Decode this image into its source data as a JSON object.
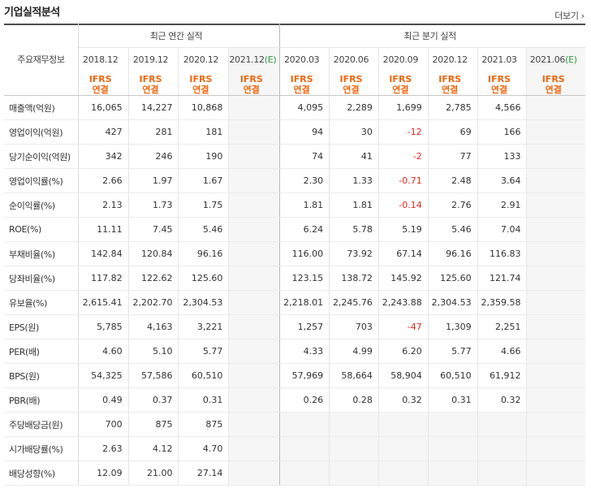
{
  "title": "기업실적분석",
  "more_label": "더보기",
  "header": {
    "label": "주요재무정보",
    "annual_group": "최근 연간 실적",
    "quarter_group": "최근 분기 실적",
    "annual_periods": [
      "2018.12",
      "2019.12",
      "2020.12",
      "2021.12(E)"
    ],
    "quarter_periods": [
      "2020.03",
      "2020.06",
      "2020.09",
      "2020.12",
      "2021.03",
      "2021.06(E)"
    ],
    "ifrs_top": "IFRS",
    "ifrs_bottom": "연결"
  },
  "rows": [
    {
      "label": "매출액(억원)",
      "annual": [
        "16,065",
        "14,227",
        "10,868",
        ""
      ],
      "quarter": [
        "4,095",
        "2,289",
        "1,699",
        "2,785",
        "4,566",
        ""
      ]
    },
    {
      "label": "영업이익(억원)",
      "annual": [
        "427",
        "281",
        "181",
        ""
      ],
      "quarter": [
        "94",
        "30",
        "-12",
        "69",
        "166",
        ""
      ]
    },
    {
      "label": "당기순이익(억원)",
      "annual": [
        "342",
        "246",
        "190",
        ""
      ],
      "quarter": [
        "74",
        "41",
        "-2",
        "77",
        "133",
        ""
      ]
    },
    {
      "label": "영업이익률(%)",
      "annual": [
        "2.66",
        "1.97",
        "1.67",
        ""
      ],
      "quarter": [
        "2.30",
        "1.33",
        "-0.71",
        "2.48",
        "3.64",
        ""
      ]
    },
    {
      "label": "순이익률(%)",
      "annual": [
        "2.13",
        "1.73",
        "1.75",
        ""
      ],
      "quarter": [
        "1.81",
        "1.81",
        "-0.14",
        "2.76",
        "2.91",
        ""
      ]
    },
    {
      "label": "ROE(%)",
      "annual": [
        "11.11",
        "7.45",
        "5.46",
        ""
      ],
      "quarter": [
        "6.24",
        "5.78",
        "5.19",
        "5.46",
        "7.04",
        ""
      ]
    },
    {
      "label": "부채비율(%)",
      "annual": [
        "142.84",
        "120.84",
        "96.16",
        ""
      ],
      "quarter": [
        "116.00",
        "73.92",
        "67.14",
        "96.16",
        "116.83",
        ""
      ]
    },
    {
      "label": "당좌비율(%)",
      "annual": [
        "117.82",
        "122.62",
        "125.60",
        ""
      ],
      "quarter": [
        "123.15",
        "138.72",
        "145.92",
        "125.60",
        "121.74",
        ""
      ]
    },
    {
      "label": "유보율(%)",
      "annual": [
        "2,615.41",
        "2,202.70",
        "2,304.53",
        ""
      ],
      "quarter": [
        "2,218.01",
        "2,245.76",
        "2,243.88",
        "2,304.53",
        "2,359.58",
        ""
      ]
    },
    {
      "label": "EPS(원)",
      "annual": [
        "5,785",
        "4,163",
        "3,221",
        ""
      ],
      "quarter": [
        "1,257",
        "703",
        "-47",
        "1,309",
        "2,251",
        ""
      ]
    },
    {
      "label": "PER(배)",
      "annual": [
        "4.60",
        "5.10",
        "5.77",
        ""
      ],
      "quarter": [
        "4.33",
        "4.99",
        "6.20",
        "5.77",
        "4.66",
        ""
      ]
    },
    {
      "label": "BPS(원)",
      "annual": [
        "54,325",
        "57,586",
        "60,510",
        ""
      ],
      "quarter": [
        "57,969",
        "58,664",
        "58,904",
        "60,510",
        "61,912",
        ""
      ]
    },
    {
      "label": "PBR(배)",
      "annual": [
        "0.49",
        "0.37",
        "0.31",
        ""
      ],
      "quarter": [
        "0.26",
        "0.28",
        "0.32",
        "0.31",
        "0.32",
        ""
      ]
    },
    {
      "label": "주당배당금(원)",
      "annual": [
        "700",
        "875",
        "875",
        ""
      ],
      "quarter": [
        "",
        "",
        "",
        "",
        "",
        ""
      ]
    },
    {
      "label": "시가배당률(%)",
      "annual": [
        "2.63",
        "4.12",
        "4.70",
        ""
      ],
      "quarter": [
        "",
        "",
        "",
        "",
        "",
        ""
      ]
    },
    {
      "label": "배당성향(%)",
      "annual": [
        "12.09",
        "21.00",
        "27.14",
        ""
      ],
      "quarter": [
        "",
        "",
        "",
        "",
        "",
        ""
      ]
    }
  ],
  "colors": {
    "ifrs": "#f0670f",
    "negative": "#e4281e",
    "estimate_bg": "#f6f6f6"
  }
}
